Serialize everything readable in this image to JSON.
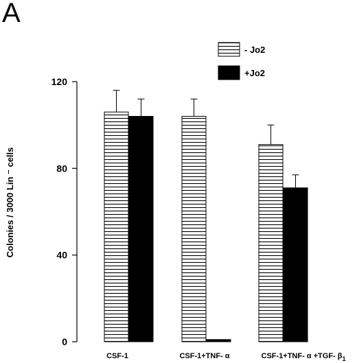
{
  "panel_letter": "A",
  "chart_data": {
    "type": "bar",
    "categories": [
      "CSF-1",
      "CSF-1+TNF-α",
      "CSF-1+TNF-α +TGF-β1"
    ],
    "category_labels": [
      {
        "main": "CSF-1",
        "sub": ""
      },
      {
        "main": "CSF-1+TNF- α",
        "sub": ""
      },
      {
        "main": "CSF-1+TNF- α +TGF- β",
        "sub": "1"
      }
    ],
    "series": [
      {
        "name": "- Jo2",
        "values": [
          106,
          104,
          91
        ],
        "errors": [
          10,
          8,
          9
        ],
        "fill": "hatched"
      },
      {
        "name": "+Jo2",
        "values": [
          104,
          1,
          71
        ],
        "errors": [
          8,
          0,
          6
        ],
        "fill": "solid"
      }
    ],
    "ylabel": "Colonies / 3000 Lin ⁻ cells",
    "ylim": [
      0,
      120
    ],
    "yticks": [
      0,
      40,
      80,
      120
    ],
    "legend_position": "top-right",
    "grid": false,
    "colors": {
      "solid": "#000000",
      "hatch_line": "#000000",
      "hatch_bg": "#ffffff"
    }
  }
}
